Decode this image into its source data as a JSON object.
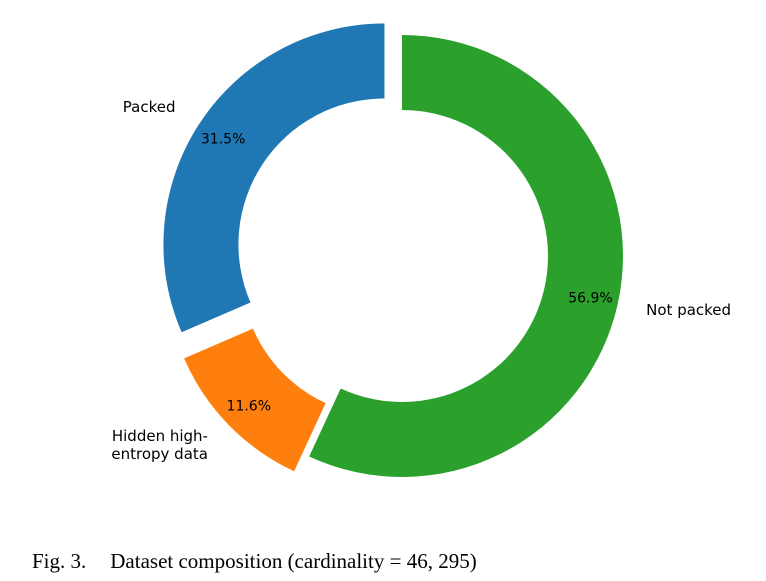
{
  "chart_data": {
    "type": "pie",
    "style": "donut",
    "series": [
      {
        "label": "Not packed",
        "label_lines": [
          "Not packed"
        ],
        "value": 56.9,
        "pct_text": "56.9%",
        "color": "#2ca02c",
        "exploded": false
      },
      {
        "label": "Hidden high-entropy data",
        "label_lines": [
          "Hidden high-",
          "entropy data"
        ],
        "value": 11.6,
        "pct_text": "11.6%",
        "color": "#ff7f0e",
        "exploded": true
      },
      {
        "label": "Packed",
        "label_lines": [
          "Packed"
        ],
        "value": 31.5,
        "pct_text": "31.5%",
        "color": "#1f77b4",
        "exploded": true
      }
    ]
  },
  "caption": {
    "figure": "Fig. 3.",
    "text": "Dataset composition (cardinality = 46, 295)"
  }
}
